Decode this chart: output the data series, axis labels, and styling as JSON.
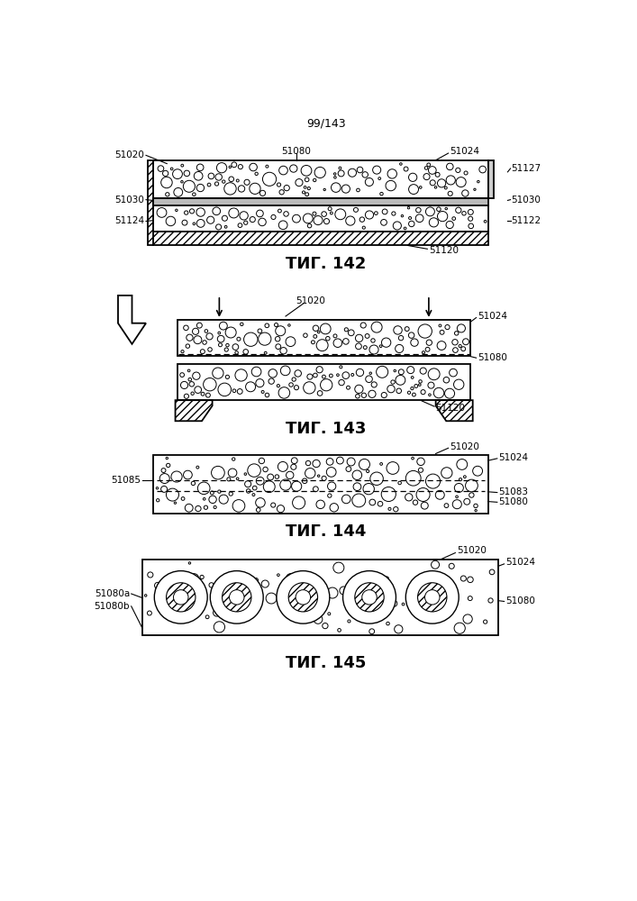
{
  "page_label": "99/143",
  "fig142_label": "ΤИГ. 142",
  "fig143_label": "ΤИГ. 143",
  "fig144_label": "ΤИГ. 144",
  "fig145_label": "ΤИГ. 145",
  "bg_color": "#ffffff",
  "lc": "#000000"
}
